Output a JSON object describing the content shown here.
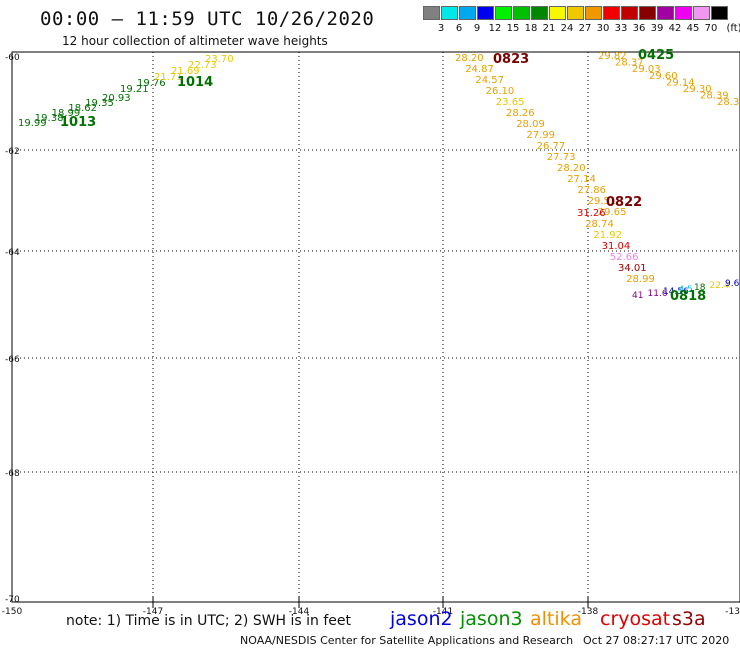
{
  "header": {
    "title": "00:00 – 11:59 UTC 10/26/2020",
    "subtitle": "12 hour collection of altimeter wave heights"
  },
  "color_scale": {
    "unit": "(ft)",
    "steps": [
      {
        "label": "3",
        "color": "#808080"
      },
      {
        "label": "6",
        "color": "#00e8e8"
      },
      {
        "label": "9",
        "color": "#00a8f0"
      },
      {
        "label": "12",
        "color": "#0000f0"
      },
      {
        "label": "15",
        "color": "#00f000"
      },
      {
        "label": "18",
        "color": "#00c000"
      },
      {
        "label": "21",
        "color": "#008800"
      },
      {
        "label": "24",
        "color": "#f8f800"
      },
      {
        "label": "27",
        "color": "#f0c800"
      },
      {
        "label": "30",
        "color": "#f09800"
      },
      {
        "label": "33",
        "color": "#f00000"
      },
      {
        "label": "36",
        "color": "#c00000"
      },
      {
        "label": "39",
        "color": "#880000"
      },
      {
        "label": "42",
        "color": "#a000a0"
      },
      {
        "label": "45",
        "color": "#f000f0"
      },
      {
        "label": "70",
        "color": "#f098f0"
      },
      {
        "label": "",
        "color": "#000000"
      }
    ]
  },
  "axes": {
    "lat_labels": [
      "-60",
      "-62",
      "-64",
      "-66",
      "-68",
      "-70"
    ],
    "lon_labels": [
      "-150",
      "-147",
      "-144",
      "-141",
      "-138",
      "-13"
    ]
  },
  "tracks": [
    {
      "time": "1013",
      "time_color": "#007000",
      "points": [
        {
          "v": "19.99",
          "c": "#007000"
        },
        {
          "v": "19.38",
          "c": "#007000"
        },
        {
          "v": "18.99",
          "c": "#007000"
        },
        {
          "v": "18.62",
          "c": "#007000"
        },
        {
          "v": "19.35",
          "c": "#007000"
        },
        {
          "v": "20.93",
          "c": "#007000"
        }
      ]
    },
    {
      "time": "1014",
      "time_color": "#007000",
      "points": [
        {
          "v": "19.21",
          "c": "#007000"
        },
        {
          "v": "19.76",
          "c": "#007000"
        },
        {
          "v": "21.71",
          "c": "#e8c800"
        },
        {
          "v": "21.69",
          "c": "#e8c800"
        },
        {
          "v": "22.73",
          "c": "#e8c800"
        },
        {
          "v": "23.70",
          "c": "#e8c800"
        }
      ]
    },
    {
      "time": "0823",
      "time_color": "#7a0000",
      "points": [
        {
          "v": "28.20",
          "c": "#e8a000"
        },
        {
          "v": "24.87",
          "c": "#e8a000"
        },
        {
          "v": "24.57",
          "c": "#e8a000"
        },
        {
          "v": "26.10",
          "c": "#e8a000"
        },
        {
          "v": "23.65",
          "c": "#e8c800"
        },
        {
          "v": "28.26",
          "c": "#e8a000"
        },
        {
          "v": "28.09",
          "c": "#e8a000"
        },
        {
          "v": "27.99",
          "c": "#e8a000"
        },
        {
          "v": "26.77",
          "c": "#e8a000"
        },
        {
          "v": "27.73",
          "c": "#e8a000"
        },
        {
          "v": "28.20",
          "c": "#e8a000"
        },
        {
          "v": "27.14",
          "c": "#e8a000"
        },
        {
          "v": "27.86",
          "c": "#e8a000"
        },
        {
          "v": "29.51",
          "c": "#e8a000"
        },
        {
          "v": "29.65",
          "c": "#e8a000"
        }
      ]
    },
    {
      "time": "0822",
      "time_color": "#7a0000",
      "points": [
        {
          "v": "31.26",
          "c": "#d80000"
        },
        {
          "v": "28.74",
          "c": "#e8a000"
        },
        {
          "v": "21.92",
          "c": "#e8c800"
        },
        {
          "v": "31.04",
          "c": "#d80000"
        },
        {
          "v": "52.66",
          "c": "#f080f0"
        },
        {
          "v": "34.01",
          "c": "#a00000"
        },
        {
          "v": "28.99",
          "c": "#e8a000"
        }
      ]
    },
    {
      "time": "0818",
      "time_color": "#007000",
      "points": [
        {
          "v": "41",
          "c": "#880088"
        },
        {
          "v": "11.6",
          "c": "#880088"
        },
        {
          "v": "14.56",
          "c": "#0000c0"
        },
        {
          "v": "4.5",
          "c": "#00c8e8"
        },
        {
          "v": "18",
          "c": "#007000"
        },
        {
          "v": "22.4",
          "c": "#e8c800"
        },
        {
          "v": "9.63",
          "c": "#0000c0"
        }
      ]
    },
    {
      "time": "0425",
      "time_color": "#007000",
      "points": [
        {
          "v": "29.82",
          "c": "#e8a000"
        },
        {
          "v": "28.37",
          "c": "#e8a000"
        },
        {
          "v": "29.03",
          "c": "#e8a000"
        },
        {
          "v": "29.60",
          "c": "#e8a000"
        },
        {
          "v": "29.14",
          "c": "#e8a000"
        },
        {
          "v": "29.30",
          "c": "#e8a000"
        },
        {
          "v": "28.39",
          "c": "#e8a000"
        },
        {
          "v": "28.3",
          "c": "#e8a000"
        }
      ]
    }
  ],
  "footer": {
    "note": "note: 1) Time is in UTC; 2) SWH is in feet",
    "satellites": [
      {
        "name": "jason2",
        "color": "#0000e0"
      },
      {
        "name": "jason3",
        "color": "#009000"
      },
      {
        "name": "altika",
        "color": "#f09000"
      },
      {
        "name": "cryosat",
        "color": "#e00000"
      },
      {
        "name": "s3a",
        "color": "#900000"
      }
    ],
    "credit": "NOAA/NESDIS Center for Satellite Applications and Research",
    "timestamp": "Oct 27 08:27:17 UTC 2020"
  }
}
